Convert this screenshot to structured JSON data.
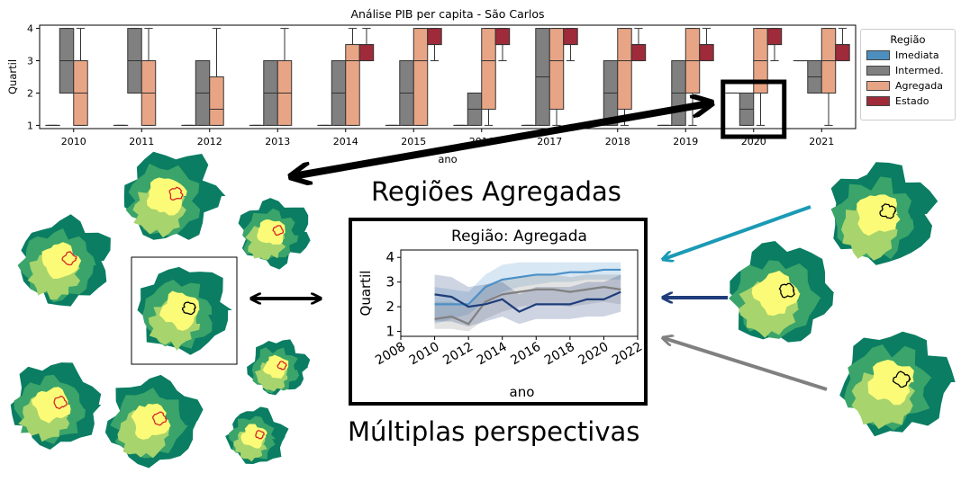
{
  "chart_data": [
    {
      "type": "boxplot",
      "title": "Análise PIB per capita - São Carlos",
      "xlabel": "ano",
      "ylabel": "Quartil",
      "ylim": [
        0.9,
        4.1
      ],
      "yticks": [
        1,
        2,
        3,
        4
      ],
      "categories": [
        "2010",
        "2011",
        "2012",
        "2013",
        "2014",
        "2015",
        "2016",
        "2017",
        "2018",
        "2019",
        "2020",
        "2021"
      ],
      "legend_title": "Região",
      "legend_position": "right",
      "series": [
        {
          "name": "Imediata",
          "color": "#4c8fbf",
          "boxes": [
            {
              "min": 1,
              "q1": 1,
              "median": 1,
              "q3": 1,
              "max": 1
            },
            {
              "min": 1,
              "q1": 1,
              "median": 1,
              "q3": 1,
              "max": 1
            },
            {
              "min": 1,
              "q1": 1,
              "median": 1,
              "q3": 1,
              "max": 1
            },
            {
              "min": 1,
              "q1": 1,
              "median": 1,
              "q3": 1,
              "max": 1
            },
            {
              "min": 1,
              "q1": 1,
              "median": 1,
              "q3": 1,
              "max": 1
            },
            {
              "min": 1,
              "q1": 1,
              "median": 1,
              "q3": 1,
              "max": 1
            },
            {
              "min": 1,
              "q1": 1,
              "median": 1,
              "q3": 1,
              "max": 1
            },
            {
              "min": 1,
              "q1": 1,
              "median": 1,
              "q3": 1,
              "max": 1
            },
            {
              "min": 1,
              "q1": 1,
              "median": 1,
              "q3": 1,
              "max": 1
            },
            {
              "min": 1,
              "q1": 1,
              "median": 1,
              "q3": 1,
              "max": 1
            },
            {
              "min": 2,
              "q1": 2,
              "median": 2,
              "q3": 2,
              "max": 2
            },
            {
              "min": 3,
              "q1": 3,
              "median": 3,
              "q3": 3,
              "max": 3
            }
          ]
        },
        {
          "name": "Intermed.",
          "color": "#808080",
          "boxes": [
            {
              "min": 2,
              "q1": 2,
              "median": 3,
              "q3": 4,
              "max": 4
            },
            {
              "min": 2,
              "q1": 2,
              "median": 3,
              "q3": 4,
              "max": 4
            },
            {
              "min": 1,
              "q1": 1,
              "median": 2,
              "q3": 3,
              "max": 3
            },
            {
              "min": 1,
              "q1": 1,
              "median": 2,
              "q3": 3,
              "max": 3
            },
            {
              "min": 1,
              "q1": 1,
              "median": 2,
              "q3": 3,
              "max": 3
            },
            {
              "min": 1,
              "q1": 1,
              "median": 2,
              "q3": 3,
              "max": 3
            },
            {
              "min": 1,
              "q1": 1,
              "median": 1.5,
              "q3": 2,
              "max": 2
            },
            {
              "min": 1,
              "q1": 1,
              "median": 2.5,
              "q3": 4,
              "max": 4
            },
            {
              "min": 1,
              "q1": 1,
              "median": 2,
              "q3": 3,
              "max": 3
            },
            {
              "min": 1,
              "q1": 1,
              "median": 2,
              "q3": 3,
              "max": 3
            },
            {
              "min": 1,
              "q1": 1,
              "median": 1.5,
              "q3": 2,
              "max": 2
            },
            {
              "min": 2,
              "q1": 2,
              "median": 2.5,
              "q3": 3,
              "max": 3
            }
          ]
        },
        {
          "name": "Agregada",
          "color": "#e8a585",
          "boxes": [
            {
              "min": 1,
              "q1": 1,
              "median": 2,
              "q3": 3,
              "max": 4
            },
            {
              "min": 1,
              "q1": 1,
              "median": 2,
              "q3": 3,
              "max": 4
            },
            {
              "min": 1,
              "q1": 1,
              "median": 1.5,
              "q3": 2.5,
              "max": 4
            },
            {
              "min": 1,
              "q1": 1,
              "median": 2,
              "q3": 3,
              "max": 4
            },
            {
              "min": 1,
              "q1": 1,
              "median": 3,
              "q3": 3.5,
              "max": 4
            },
            {
              "min": 1,
              "q1": 1,
              "median": 3,
              "q3": 4,
              "max": 4
            },
            {
              "min": 1,
              "q1": 1.5,
              "median": 3,
              "q3": 4,
              "max": 4
            },
            {
              "min": 1,
              "q1": 1.5,
              "median": 3,
              "q3": 4,
              "max": 4
            },
            {
              "min": 1,
              "q1": 1.5,
              "median": 3,
              "q3": 4,
              "max": 4
            },
            {
              "min": 1,
              "q1": 2,
              "median": 3,
              "q3": 4,
              "max": 4
            },
            {
              "min": 1,
              "q1": 2,
              "median": 3,
              "q3": 4,
              "max": 4
            },
            {
              "min": 1,
              "q1": 2,
              "median": 3,
              "q3": 4,
              "max": 4
            }
          ]
        },
        {
          "name": "Estado",
          "color": "#9e2a3a",
          "boxes": [
            null,
            null,
            null,
            null,
            {
              "min": 3,
              "q1": 3,
              "median": 3.5,
              "q3": 3.5,
              "max": 4
            },
            {
              "min": 3,
              "q1": 3.5,
              "median": 3.5,
              "q3": 4,
              "max": 4
            },
            {
              "min": 3,
              "q1": 3.5,
              "median": 3.5,
              "q3": 4,
              "max": 4
            },
            {
              "min": 3,
              "q1": 3.5,
              "median": 3.5,
              "q3": 4,
              "max": 4
            },
            {
              "min": 3,
              "q1": 3,
              "median": 3.5,
              "q3": 3.5,
              "max": 4
            },
            {
              "min": 3,
              "q1": 3,
              "median": 3.5,
              "q3": 3.5,
              "max": 4
            },
            {
              "min": 3,
              "q1": 3.5,
              "median": 3.5,
              "q3": 4,
              "max": 4
            },
            {
              "min": 3,
              "q1": 3,
              "median": 3.5,
              "q3": 3.5,
              "max": 4
            }
          ]
        }
      ]
    },
    {
      "type": "line",
      "title": "Região: Agregada",
      "xlabel": "ano",
      "ylabel": "Quartil",
      "xlim": [
        2008,
        2022
      ],
      "ylim": [
        0.8,
        4.3
      ],
      "xticks": [
        2008,
        2010,
        2012,
        2014,
        2016,
        2018,
        2020,
        2022
      ],
      "yticks": [
        1,
        2,
        3,
        4
      ],
      "x": [
        2010,
        2011,
        2012,
        2013,
        2014,
        2015,
        2016,
        2017,
        2018,
        2019,
        2020,
        2021
      ],
      "series": [
        {
          "color": "#4a90c8",
          "values": [
            2.1,
            2.1,
            2.1,
            2.8,
            3.1,
            3.2,
            3.3,
            3.3,
            3.4,
            3.4,
            3.5,
            3.5
          ],
          "band_low": [
            1.3,
            1.5,
            1.7,
            2.2,
            2.6,
            2.8,
            2.9,
            3.0,
            3.0,
            3.1,
            3.1,
            3.1
          ],
          "band_high": [
            2.8,
            2.7,
            2.6,
            3.3,
            3.7,
            3.8,
            3.8,
            3.8,
            3.8,
            3.8,
            3.8,
            3.8
          ]
        },
        {
          "color": "#808080",
          "values": [
            1.5,
            1.6,
            1.3,
            2.2,
            2.5,
            2.6,
            2.7,
            2.7,
            2.6,
            2.7,
            2.8,
            2.7
          ],
          "band_low": [
            1.1,
            1.1,
            1.0,
            1.5,
            1.8,
            2.0,
            2.1,
            2.1,
            2.0,
            2.1,
            2.2,
            2.1
          ],
          "band_high": [
            2.2,
            2.2,
            2.0,
            2.9,
            3.1,
            3.2,
            3.3,
            3.3,
            3.2,
            3.3,
            3.3,
            3.3
          ]
        },
        {
          "color": "#1f3d7a",
          "values": [
            2.5,
            2.4,
            2.0,
            2.1,
            2.3,
            1.8,
            2.1,
            2.1,
            2.1,
            2.3,
            2.3,
            2.6
          ],
          "band_low": [
            1.4,
            1.4,
            1.2,
            1.4,
            1.6,
            1.3,
            1.5,
            1.5,
            1.5,
            1.6,
            1.6,
            1.8
          ],
          "band_high": [
            3.3,
            3.2,
            2.8,
            2.9,
            3.0,
            2.5,
            2.8,
            2.8,
            2.8,
            3.0,
            3.0,
            3.3
          ]
        }
      ]
    }
  ],
  "headings": {
    "top": "Regiões Agregadas",
    "bottom": "Múltiplas perspectivas"
  },
  "colors": {
    "map_dark": "#0a7d62",
    "map_mid": "#3aa46a",
    "map_light": "#a7d46d",
    "map_yellow": "#fbfb78",
    "arrow_teal": "#1a9ab5",
    "arrow_navy": "#1f3d7a",
    "arrow_gray": "#808080",
    "highlight_red": "#d62728"
  }
}
